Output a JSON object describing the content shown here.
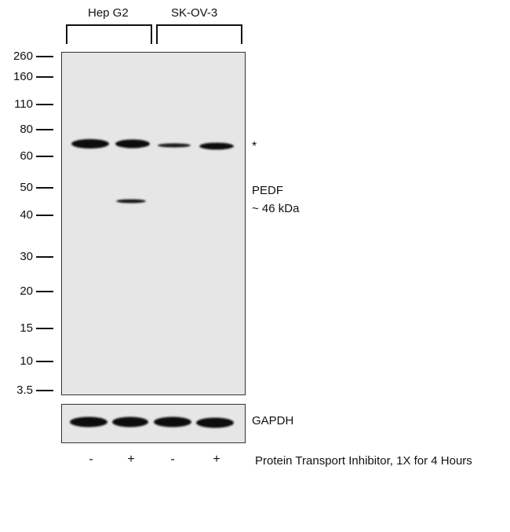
{
  "cell_lines": [
    "Hep G2",
    "SK-OV-3"
  ],
  "mw_markers": [
    "260",
    "160",
    "110",
    "80",
    "60",
    "50",
    "40",
    "30",
    "20",
    "15",
    "10",
    "3.5"
  ],
  "band_labels": {
    "asterisk": "*",
    "pedf_name": "PEDF",
    "pedf_size": "~ 46 kDa",
    "loading_control": "GAPDH"
  },
  "lanes": [
    {
      "cell_line": "Hep G2",
      "treatment": "-"
    },
    {
      "cell_line": "Hep G2",
      "treatment": "+"
    },
    {
      "cell_line": "SK-OV-3",
      "treatment": "-"
    },
    {
      "cell_line": "SK-OV-3",
      "treatment": "+"
    }
  ],
  "treatment_label": "Protein Transport Inhibitor, 1X for 4 Hours",
  "colors": {
    "band": "#0d0d0d",
    "blot_background": "#e6e6e6",
    "frame": "#333333"
  }
}
